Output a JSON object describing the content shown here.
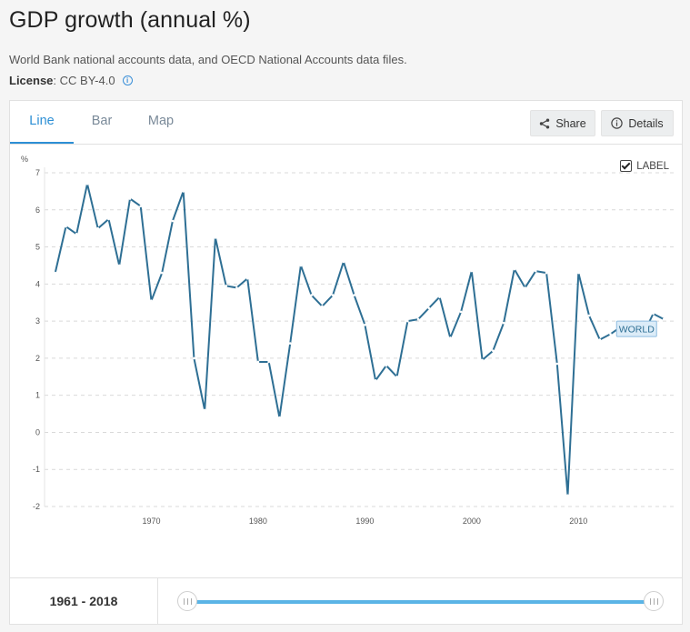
{
  "page": {
    "title": "GDP growth (annual %)",
    "source": "World Bank national accounts data, and OECD National Accounts data files.",
    "license_label": "License",
    "license_value": " : CC BY-4.0"
  },
  "tabs": [
    {
      "label": "Line",
      "active": true
    },
    {
      "label": "Bar",
      "active": false
    },
    {
      "label": "Map",
      "active": false
    }
  ],
  "actions": {
    "share_label": "Share",
    "details_label": "Details"
  },
  "label_toggle": {
    "label": "LABEL",
    "checked": true
  },
  "range": {
    "start": "1961",
    "separator": " - ",
    "end": "2018"
  },
  "colors": {
    "line": "#2e6f94",
    "accent": "#2d8fd5",
    "slider": "#5ab4e6",
    "grid": "#d9d9d9"
  },
  "chart_data": {
    "type": "line",
    "ylabel": "%",
    "ylim": [
      -2,
      7
    ],
    "yticks": [
      7,
      6,
      5,
      4,
      3,
      2,
      1,
      0,
      -1,
      -2
    ],
    "xlim": [
      1960,
      2019
    ],
    "xticks": [
      1970,
      1980,
      1990,
      2000,
      2010
    ],
    "grid": "horizontal-dashed",
    "series": [
      {
        "name": "WORLD",
        "x": [
          1961,
          1962,
          1963,
          1964,
          1965,
          1966,
          1967,
          1968,
          1969,
          1970,
          1971,
          1972,
          1973,
          1974,
          1975,
          1976,
          1977,
          1978,
          1979,
          1980,
          1981,
          1982,
          1983,
          1984,
          1985,
          1986,
          1987,
          1988,
          1989,
          1990,
          1991,
          1992,
          1993,
          1994,
          1995,
          1996,
          1997,
          1998,
          1999,
          2000,
          2001,
          2002,
          2003,
          2004,
          2005,
          2006,
          2007,
          2008,
          2009,
          2010,
          2011,
          2012,
          2013,
          2014,
          2015,
          2016,
          2017,
          2018
        ],
        "values": [
          4.3,
          5.55,
          5.35,
          6.7,
          5.5,
          5.75,
          4.5,
          6.3,
          6.1,
          3.55,
          4.3,
          5.7,
          6.5,
          2.0,
          0.6,
          5.25,
          3.95,
          3.9,
          4.15,
          1.9,
          1.9,
          0.4,
          2.4,
          4.5,
          3.7,
          3.4,
          3.7,
          4.6,
          3.7,
          2.9,
          1.4,
          1.8,
          1.5,
          3.0,
          3.05,
          3.35,
          3.65,
          2.55,
          3.25,
          4.35,
          1.95,
          2.2,
          2.95,
          4.4,
          3.9,
          4.35,
          4.3,
          1.85,
          -1.7,
          4.3,
          3.15,
          2.5,
          2.65,
          2.85,
          2.85,
          2.6,
          3.2,
          3.05
        ]
      }
    ]
  }
}
